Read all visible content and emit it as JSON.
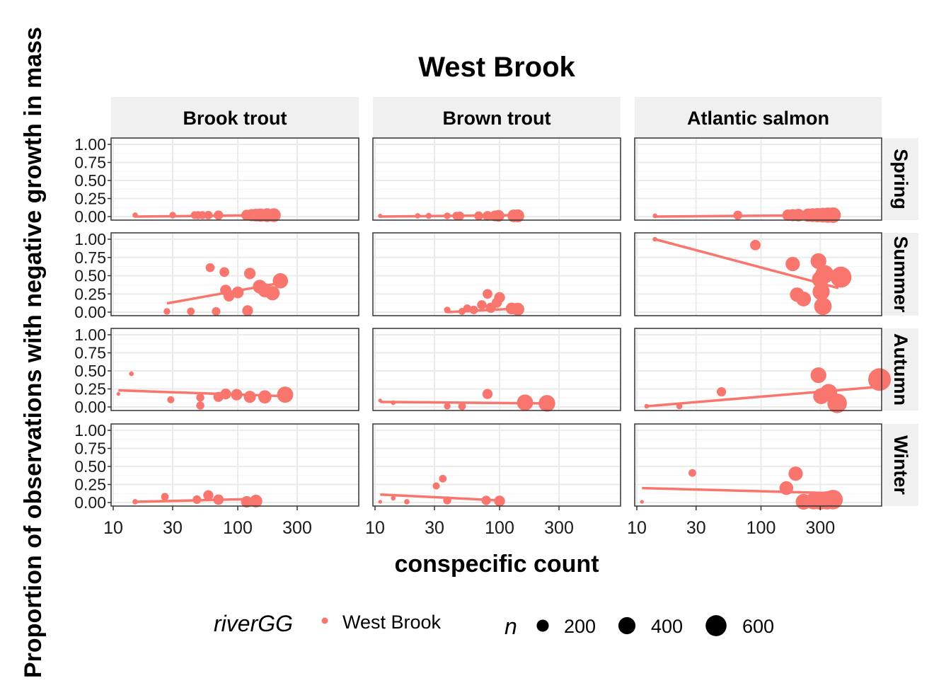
{
  "chart_data": {
    "type": "scatter",
    "title": "West Brook",
    "xlabel": "conspecific count",
    "ylabel": "Proportion of observations with negative growth in mass",
    "x_scale": "log10",
    "xlim": [
      10,
      900
    ],
    "x_ticks": [
      "10",
      "30",
      "100",
      "300"
    ],
    "x_tick_values": [
      10,
      30,
      100,
      300
    ],
    "ylim": [
      0,
      1
    ],
    "y_ticks": [
      "0.00",
      "0.25",
      "0.50",
      "0.75",
      "1.00"
    ],
    "y_tick_values": [
      0,
      0.25,
      0.5,
      0.75,
      1.0
    ],
    "grid": true,
    "series_color": "#F8766D",
    "columns": [
      "Brook trout",
      "Brown trout",
      "Atlantic salmon"
    ],
    "rows": [
      "Spring",
      "Summer",
      "Autumn",
      "Winter"
    ],
    "legend": {
      "placement": "bottom",
      "color_title": "riverGG",
      "color_label": "West Brook",
      "size_title": "n",
      "size_labels": [
        "200",
        "400",
        "600"
      ],
      "size_values": [
        200,
        400,
        600
      ]
    },
    "panels": [
      {
        "column": "Brook trout",
        "row": "Spring",
        "points": [
          [
            15,
            0.02,
            40
          ],
          [
            30,
            0.02,
            60
          ],
          [
            45,
            0.02,
            80
          ],
          [
            48,
            0.02,
            90
          ],
          [
            52,
            0.02,
            90
          ],
          [
            58,
            0.02,
            100
          ],
          [
            70,
            0.02,
            120
          ],
          [
            118,
            0.02,
            160
          ],
          [
            130,
            0.02,
            200
          ],
          [
            140,
            0.02,
            220
          ],
          [
            152,
            0.02,
            240
          ],
          [
            172,
            0.02,
            260
          ],
          [
            195,
            0.02,
            260
          ]
        ],
        "fit": [
          [
            15,
            0.0
          ],
          [
            200,
            0.02
          ]
        ]
      },
      {
        "column": "Brown trout",
        "row": "Spring",
        "points": [
          [
            11,
            0.01,
            25
          ],
          [
            22,
            0.01,
            40
          ],
          [
            27,
            0.01,
            50
          ],
          [
            38,
            0.01,
            60
          ],
          [
            45,
            0.01,
            90
          ],
          [
            48,
            0.01,
            100
          ],
          [
            68,
            0.01,
            110
          ],
          [
            80,
            0.01,
            130
          ],
          [
            92,
            0.01,
            160
          ],
          [
            98,
            0.01,
            190
          ],
          [
            130,
            0.01,
            220
          ],
          [
            140,
            0.01,
            230
          ]
        ],
        "fit": [
          [
            11,
            0.0
          ],
          [
            140,
            0.02
          ]
        ]
      },
      {
        "column": "Atlantic salmon",
        "row": "Spring",
        "points": [
          [
            14,
            0.01,
            30
          ],
          [
            65,
            0.02,
            110
          ],
          [
            165,
            0.02,
            180
          ],
          [
            180,
            0.02,
            200
          ],
          [
            200,
            0.02,
            220
          ],
          [
            240,
            0.02,
            240
          ],
          [
            260,
            0.02,
            260
          ],
          [
            285,
            0.02,
            280
          ],
          [
            315,
            0.02,
            300
          ],
          [
            345,
            0.02,
            320
          ],
          [
            380,
            0.02,
            330
          ]
        ],
        "fit": [
          [
            14,
            0.0
          ],
          [
            380,
            0.02
          ]
        ]
      },
      {
        "column": "Brook trout",
        "row": "Summer",
        "points": [
          [
            27,
            0.01,
            60
          ],
          [
            42,
            0.01,
            80
          ],
          [
            60,
            0.61,
            110
          ],
          [
            67,
            0.01,
            100
          ],
          [
            78,
            0.55,
            130
          ],
          [
            80,
            0.3,
            170
          ],
          [
            85,
            0.22,
            160
          ],
          [
            100,
            0.27,
            190
          ],
          [
            120,
            0.02,
            160
          ],
          [
            125,
            0.53,
            180
          ],
          [
            150,
            0.35,
            260
          ],
          [
            165,
            0.3,
            270
          ],
          [
            190,
            0.26,
            280
          ],
          [
            220,
            0.43,
            320
          ]
        ],
        "fit": [
          [
            27,
            0.12
          ],
          [
            220,
            0.4
          ]
        ]
      },
      {
        "column": "Brown trout",
        "row": "Summer",
        "points": [
          [
            38,
            0.03,
            60
          ],
          [
            50,
            0.01,
            70
          ],
          [
            55,
            0.05,
            90
          ],
          [
            62,
            0.03,
            100
          ],
          [
            72,
            0.1,
            120
          ],
          [
            80,
            0.25,
            130
          ],
          [
            85,
            0.06,
            140
          ],
          [
            95,
            0.13,
            140
          ],
          [
            100,
            0.2,
            160
          ],
          [
            125,
            0.05,
            190
          ],
          [
            140,
            0.04,
            230
          ]
        ],
        "fit": [
          [
            38,
            0.0
          ],
          [
            140,
            0.05
          ]
        ]
      },
      {
        "column": "Atlantic salmon",
        "row": "Summer",
        "points": [
          [
            14,
            1.0,
            30
          ],
          [
            90,
            0.92,
            150
          ],
          [
            180,
            0.66,
            280
          ],
          [
            195,
            0.24,
            280
          ],
          [
            220,
            0.18,
            300
          ],
          [
            290,
            0.7,
            340
          ],
          [
            300,
            0.45,
            380
          ],
          [
            305,
            0.28,
            400
          ],
          [
            315,
            0.08,
            420
          ],
          [
            325,
            0.52,
            460
          ],
          [
            440,
            0.48,
            600
          ]
        ],
        "fit": [
          [
            14,
            1.0
          ],
          [
            420,
            0.33
          ]
        ]
      },
      {
        "column": "Brook trout",
        "row": "Autumn",
        "points": [
          [
            11,
            0.18,
            20
          ],
          [
            14,
            0.46,
            30
          ],
          [
            29,
            0.1,
            70
          ],
          [
            50,
            0.02,
            90
          ],
          [
            50,
            0.13,
            90
          ],
          [
            70,
            0.14,
            140
          ],
          [
            80,
            0.18,
            160
          ],
          [
            98,
            0.17,
            180
          ],
          [
            125,
            0.14,
            200
          ],
          [
            165,
            0.14,
            240
          ],
          [
            240,
            0.17,
            360
          ]
        ],
        "fit": [
          [
            11,
            0.23
          ],
          [
            240,
            0.15
          ]
        ]
      },
      {
        "column": "Brown trout",
        "row": "Autumn",
        "points": [
          [
            11,
            0.09,
            20
          ],
          [
            14,
            0.06,
            30
          ],
          [
            38,
            0.01,
            60
          ],
          [
            50,
            0.01,
            80
          ],
          [
            80,
            0.18,
            140
          ],
          [
            160,
            0.06,
            360
          ],
          [
            240,
            0.05,
            380
          ]
        ],
        "fit": [
          [
            11,
            0.07
          ],
          [
            240,
            0.05
          ]
        ]
      },
      {
        "column": "Atlantic salmon",
        "row": "Autumn",
        "points": [
          [
            12,
            0.01,
            30
          ],
          [
            22,
            0.01,
            50
          ],
          [
            48,
            0.21,
            120
          ],
          [
            290,
            0.44,
            340
          ],
          [
            305,
            0.15,
            350
          ],
          [
            350,
            0.2,
            400
          ],
          [
            410,
            0.05,
            520
          ],
          [
            900,
            0.38,
            700
          ]
        ],
        "fit": [
          [
            12,
            0.01
          ],
          [
            900,
            0.28
          ]
        ]
      },
      {
        "column": "Brook trout",
        "row": "Winter",
        "points": [
          [
            15,
            0.01,
            40
          ],
          [
            26,
            0.08,
            80
          ],
          [
            47,
            0.04,
            100
          ],
          [
            58,
            0.1,
            140
          ],
          [
            70,
            0.04,
            150
          ],
          [
            118,
            0.01,
            180
          ],
          [
            140,
            0.02,
            220
          ]
        ],
        "fit": [
          [
            15,
            0.01
          ],
          [
            140,
            0.05
          ]
        ]
      },
      {
        "column": "Brown trout",
        "row": "Winter",
        "points": [
          [
            11,
            0.01,
            20
          ],
          [
            14,
            0.06,
            30
          ],
          [
            18,
            0.01,
            40
          ],
          [
            31,
            0.23,
            70
          ],
          [
            35,
            0.33,
            80
          ],
          [
            38,
            0.03,
            90
          ],
          [
            78,
            0.03,
            120
          ],
          [
            100,
            0.02,
            160
          ]
        ],
        "fit": [
          [
            11,
            0.11
          ],
          [
            100,
            0.03
          ]
        ]
      },
      {
        "column": "Atlantic salmon",
        "row": "Winter",
        "points": [
          [
            11,
            0.01,
            20
          ],
          [
            28,
            0.41,
            80
          ],
          [
            160,
            0.2,
            260
          ],
          [
            190,
            0.4,
            280
          ],
          [
            220,
            0.01,
            340
          ],
          [
            265,
            0.02,
            380
          ],
          [
            300,
            0.02,
            400
          ],
          [
            340,
            0.03,
            460
          ],
          [
            380,
            0.04,
            520
          ]
        ],
        "fit": [
          [
            11,
            0.2
          ],
          [
            380,
            0.13
          ]
        ]
      }
    ]
  }
}
